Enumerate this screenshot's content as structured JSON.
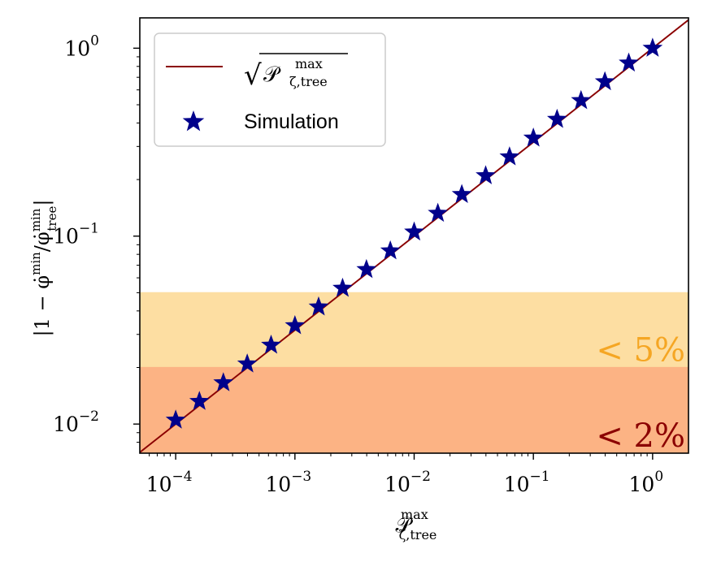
{
  "chart_data": {
    "type": "scatter",
    "xscale": "log",
    "yscale": "log",
    "xlim": [
      5e-05,
      2.0
    ],
    "ylim": [
      0.007,
      1.45
    ],
    "xlabel": {
      "base": "𝒫",
      "sup": "max",
      "sub": "ζ,tree"
    },
    "ylabel": {
      "prefix": "|1 − ",
      "phi": "φ̇",
      "sup1": "min",
      "slash": "/",
      "sup2": "min",
      "sub2": "tree",
      "suffix": "|"
    },
    "x_ticks": [
      {
        "value": 0.0001,
        "base": "10",
        "exp": "−4"
      },
      {
        "value": 0.001,
        "base": "10",
        "exp": "−3"
      },
      {
        "value": 0.01,
        "base": "10",
        "exp": "−2"
      },
      {
        "value": 0.1,
        "base": "10",
        "exp": "−1"
      },
      {
        "value": 1.0,
        "base": "10",
        "exp": "0"
      }
    ],
    "y_ticks": [
      {
        "value": 0.01,
        "base": "10",
        "exp": "−2"
      },
      {
        "value": 0.1,
        "base": "10",
        "exp": "−1"
      },
      {
        "value": 1.0,
        "base": "10",
        "exp": "0"
      }
    ],
    "bands": [
      {
        "name": "band-5pct",
        "y0": 0.02,
        "y1": 0.05,
        "color": "#fddea2",
        "label": "< 5%",
        "label_color": "#f5a623"
      },
      {
        "name": "band-2pct",
        "y0": 0.007,
        "y1": 0.02,
        "color": "#fcb384",
        "label": "< 2%",
        "label_color": "#8b0000"
      }
    ],
    "series": [
      {
        "name": "sqrt-line",
        "legend_label": {
          "prefix": "√",
          "base": "𝒫",
          "sup": "max",
          "sub": "ζ,tree"
        },
        "kind": "line",
        "function": "sqrt",
        "color": "#8b0000"
      },
      {
        "name": "simulation",
        "legend_label": "Simulation",
        "kind": "scatter",
        "marker": "star",
        "color": "#00008b",
        "x": [
          0.0001,
          0.000158,
          0.000251,
          0.000398,
          0.000631,
          0.001,
          0.00158,
          0.00251,
          0.00398,
          0.00631,
          0.01,
          0.0158,
          0.0251,
          0.0398,
          0.0631,
          0.1,
          0.158,
          0.251,
          0.398,
          0.631,
          1.0
        ],
        "y": [
          0.0105,
          0.0132,
          0.0166,
          0.0209,
          0.0263,
          0.0334,
          0.042,
          0.0528,
          0.0664,
          0.0835,
          0.1052,
          0.1323,
          0.1666,
          0.2097,
          0.2642,
          0.3327,
          0.4183,
          0.5265,
          0.663,
          0.834,
          1.0
        ]
      }
    ],
    "legend_position": "upper-left"
  }
}
